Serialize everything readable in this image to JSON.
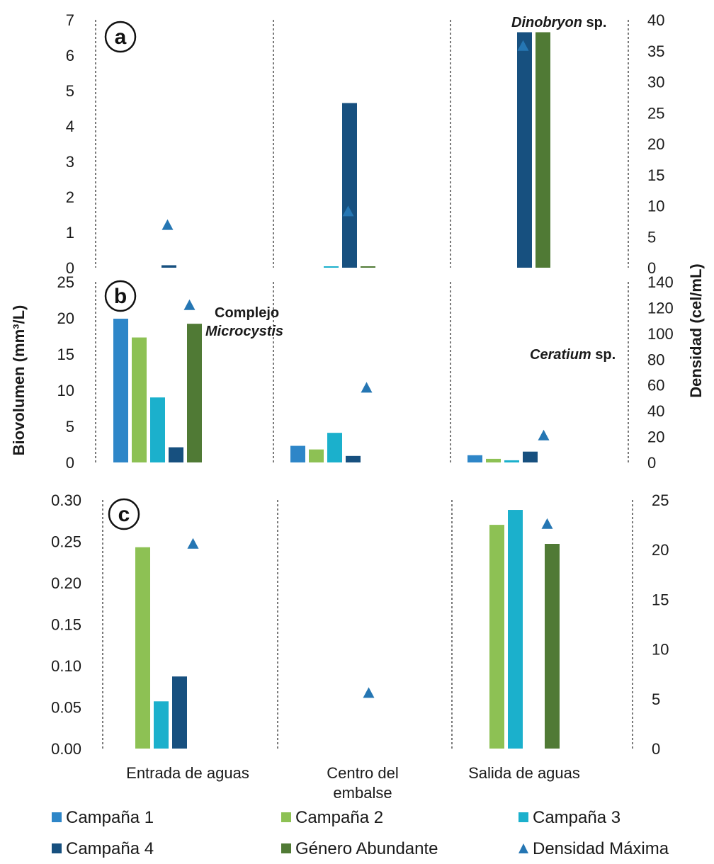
{
  "colors": {
    "Campaña 1": "#2e86c8",
    "Campaña 2": "#8dc154",
    "Campaña 3": "#1bb0cc",
    "Campaña 4": "#17507f",
    "Género Abundante": "#507a35",
    "Densidad Máxima": "#2576b3"
  },
  "axis_titles": {
    "left": "Biovolumen (mm³/L)",
    "right": "Densidad (cel/mL)"
  },
  "chart_data": [
    {
      "type": "bar",
      "panel": "a",
      "categories": [
        "Entrada de aguas",
        "Centro del embalse",
        "Salida de aguas"
      ],
      "ylim": [
        0,
        7
      ],
      "y_ticks": [
        "0",
        "1",
        "2",
        "3",
        "4",
        "5",
        "6",
        "7"
      ],
      "y2lim": [
        0,
        40
      ],
      "y2_ticks": [
        "0",
        "5",
        "10",
        "15",
        "20",
        "25",
        "30",
        "35",
        "40"
      ],
      "series": [
        {
          "name": "Campaña 1",
          "values": [
            0,
            0,
            0
          ]
        },
        {
          "name": "Campaña 2",
          "values": [
            0,
            0,
            0
          ]
        },
        {
          "name": "Campaña 3",
          "values": [
            0,
            0.02,
            0
          ]
        },
        {
          "name": "Campaña 4",
          "values": [
            0.07,
            4.65,
            6.65
          ]
        },
        {
          "name": "Género Abundante",
          "values": [
            0,
            0.02,
            6.65
          ]
        }
      ],
      "density": [
        6.9,
        9.1,
        35.8
      ],
      "annotations": [
        {
          "text_parts": [
            {
              "t": "Dinobryon",
              "italic": true
            },
            {
              "t": " sp.",
              "italic": false
            }
          ]
        }
      ]
    },
    {
      "type": "bar",
      "panel": "b",
      "categories": [
        "Entrada de aguas",
        "Centro del embalse",
        "Salida de aguas"
      ],
      "ylim": [
        0,
        25
      ],
      "y_ticks": [
        "0",
        "5",
        "10",
        "15",
        "20",
        "25"
      ],
      "y2lim": [
        0,
        140
      ],
      "y2_ticks": [
        "0",
        "20",
        "40",
        "60",
        "80",
        "100",
        "120",
        "140"
      ],
      "series": [
        {
          "name": "Campaña 1",
          "values": [
            19.9,
            2.3,
            1.0
          ]
        },
        {
          "name": "Campaña 2",
          "values": [
            17.3,
            1.8,
            0.5
          ]
        },
        {
          "name": "Campaña 3",
          "values": [
            9.0,
            4.1,
            0.3
          ]
        },
        {
          "name": "Campaña 4",
          "values": [
            2.1,
            0.9,
            1.5
          ]
        },
        {
          "name": "Género Abundante",
          "values": [
            19.2,
            0,
            0
          ]
        }
      ],
      "density": [
        122,
        58,
        21
      ],
      "annotations": [
        {
          "text_parts": [
            {
              "t": "Complejo",
              "italic": false
            }
          ]
        },
        {
          "text_parts": [
            {
              "t": "Microcystis",
              "italic": true
            }
          ]
        }
      ]
    },
    {
      "type": "bar",
      "panel": "c",
      "categories": [
        "Entrada de aguas",
        "Centro del embalse",
        "Salida de aguas"
      ],
      "ylim": [
        0,
        0.3
      ],
      "y_ticks": [
        "0.00",
        "0.05",
        "0.10",
        "0.15",
        "0.20",
        "0.25",
        "0.30"
      ],
      "y2lim": [
        0,
        25
      ],
      "y2_ticks": [
        "0",
        "5",
        "10",
        "15",
        "20",
        "25"
      ],
      "series": [
        {
          "name": "Campaña 1",
          "values": [
            0,
            0,
            0
          ]
        },
        {
          "name": "Campaña 2",
          "values": [
            0.243,
            0,
            0.27
          ]
        },
        {
          "name": "Campaña 3",
          "values": [
            0.057,
            0,
            0.288
          ]
        },
        {
          "name": "Campaña 4",
          "values": [
            0.087,
            0,
            0
          ]
        },
        {
          "name": "Género Abundante",
          "values": [
            0,
            0,
            0.247
          ]
        }
      ],
      "density": [
        20.6,
        5.6,
        22.6
      ],
      "annotations": [
        {
          "text_parts": [
            {
              "t": "Ceratium",
              "italic": true
            },
            {
              "t": " sp.",
              "italic": false
            }
          ]
        }
      ]
    }
  ],
  "category_labels": [
    {
      "lines": [
        "Entrada de aguas"
      ]
    },
    {
      "lines": [
        "Centro del",
        "embalse"
      ]
    },
    {
      "lines": [
        "Salida de aguas"
      ]
    }
  ],
  "legend": [
    {
      "label": "Campaña 1",
      "marker": "square"
    },
    {
      "label": "Campaña 2",
      "marker": "square"
    },
    {
      "label": "Campaña 3",
      "marker": "square"
    },
    {
      "label": "Campaña 4",
      "marker": "square"
    },
    {
      "label": "Género Abundante",
      "marker": "square"
    },
    {
      "label": "Densidad Máxima",
      "marker": "triangle"
    }
  ]
}
